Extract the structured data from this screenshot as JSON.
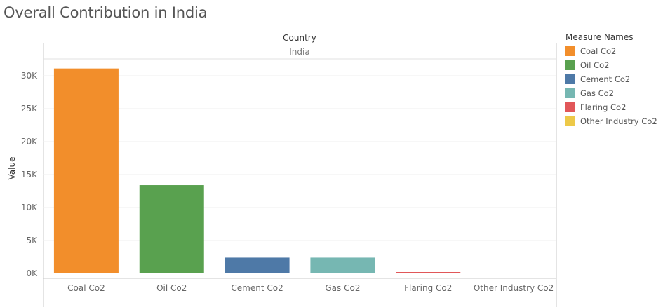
{
  "chart_title": "Overall Contribution in India",
  "header": {
    "dimension_label": "Country",
    "pane_label": "India"
  },
  "legend": {
    "title": "Measure Names",
    "items": [
      {
        "label": "Coal Co2",
        "color": "#f28e2b"
      },
      {
        "label": "Oil Co2",
        "color": "#59a14f"
      },
      {
        "label": "Cement Co2",
        "color": "#4e79a7"
      },
      {
        "label": "Gas Co2",
        "color": "#76b7b2"
      },
      {
        "label": "Flaring Co2",
        "color": "#e15759"
      },
      {
        "label": "Other Industry Co2",
        "color": "#edc948"
      }
    ]
  },
  "chart_data": {
    "type": "bar",
    "categories": [
      "Coal Co2",
      "Oil Co2",
      "Cement Co2",
      "Gas Co2",
      "Flaring Co2",
      "Other Industry Co2"
    ],
    "values": [
      31100,
      13400,
      2400,
      2400,
      150,
      0
    ],
    "colors": [
      "#f28e2b",
      "#59a14f",
      "#4e79a7",
      "#76b7b2",
      "#e15759",
      "#edc948"
    ],
    "ylabel": "Value",
    "ylim": [
      0,
      31500
    ],
    "yticks": [
      0,
      5000,
      10000,
      15000,
      20000,
      25000,
      30000
    ],
    "ytick_labels": [
      "0K",
      "5K",
      "10K",
      "15K",
      "20K",
      "25K",
      "30K"
    ],
    "grid": true
  }
}
